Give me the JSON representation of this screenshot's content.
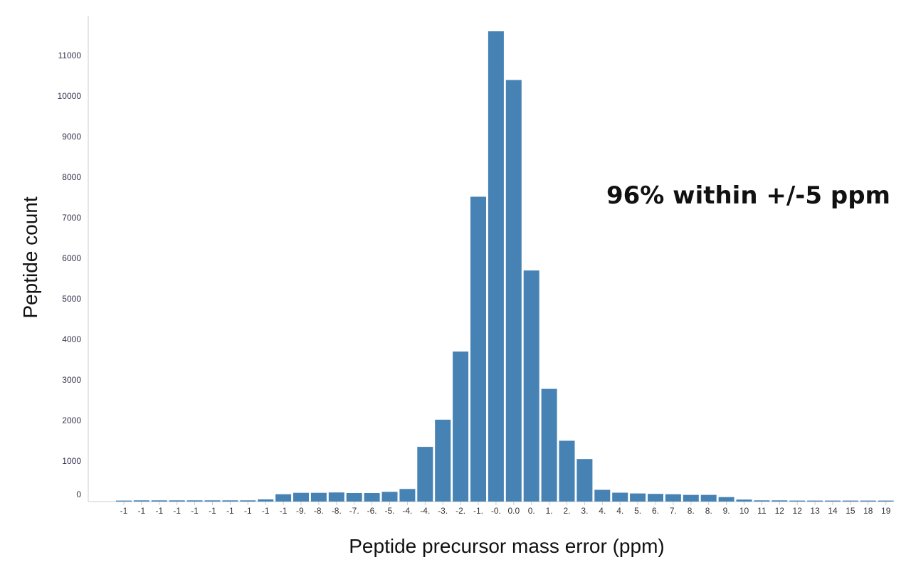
{
  "chart_data": {
    "type": "bar",
    "xlabel": "Peptide precursor mass error (ppm)",
    "ylabel": "Peptide count",
    "annotation": "96% within +/-5 ppm",
    "ylim": [
      0,
      11600
    ],
    "yticks": [
      0,
      1000,
      2000,
      3000,
      4000,
      5000,
      6000,
      7000,
      8000,
      9000,
      10000,
      11000
    ],
    "bar_color": "#4682b4",
    "grid": false,
    "categories": [
      "-1",
      "-1",
      "-1",
      "-1",
      "-1",
      "-1",
      "-1",
      "-1",
      "-1",
      "-1",
      "-9.",
      "-8.",
      "-8.",
      "-7.",
      "-6.",
      "-5.",
      "-4.",
      "-4.",
      "-3.",
      "-2.",
      "-1.",
      "-0.",
      "0.0",
      "0.",
      "1.",
      "2.",
      "3.",
      "4.",
      "4.",
      "5.",
      "6.",
      "7.",
      "8.",
      "8.",
      "9.",
      "10",
      "11",
      "12",
      "12",
      "13",
      "14",
      "15",
      "18",
      "19"
    ],
    "values": [
      25,
      30,
      30,
      30,
      30,
      30,
      30,
      30,
      55,
      180,
      215,
      215,
      225,
      210,
      210,
      240,
      310,
      1350,
      2020,
      3700,
      7520,
      11600,
      10400,
      5700,
      2780,
      1500,
      1050,
      290,
      220,
      200,
      190,
      180,
      165,
      165,
      110,
      50,
      30,
      30,
      25,
      25,
      25,
      25,
      25,
      25
    ]
  }
}
